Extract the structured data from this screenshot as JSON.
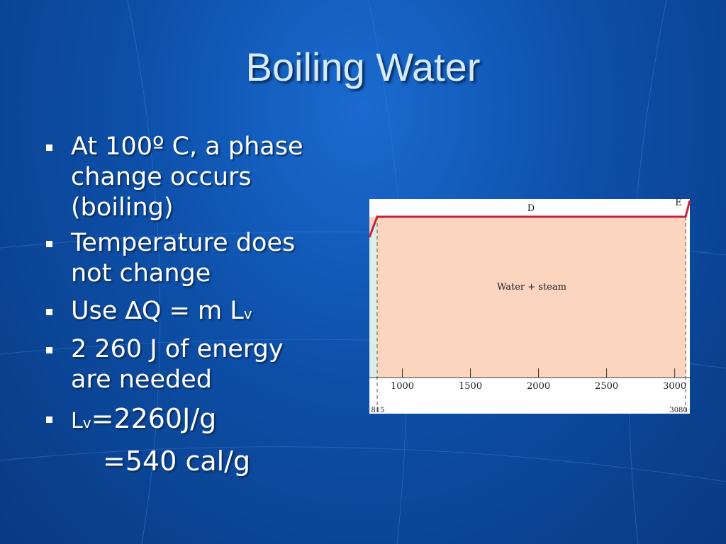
{
  "title": "Boiling Water",
  "bullets": [
    {
      "lines": [
        "At 100º C, a phase",
        "change occurs",
        "(boiling)"
      ]
    },
    {
      "lines": [
        "Temperature does",
        "not change"
      ]
    },
    {
      "parts": [
        "Use ∆Q = m L",
        "v"
      ]
    },
    {
      "lines": [
        "2 260 J of energy",
        "are needed"
      ]
    },
    {
      "parts": [
        "L",
        "v",
        "=2260J/g"
      ],
      "continuation": "=540 cal/g"
    }
  ],
  "figure": {
    "region_label": "Water + steam",
    "segment_labels": [
      "D",
      "E"
    ],
    "xlim": [
      815,
      3080
    ],
    "xticks": [
      1000,
      1500,
      2000,
      2500,
      3000
    ]
  }
}
